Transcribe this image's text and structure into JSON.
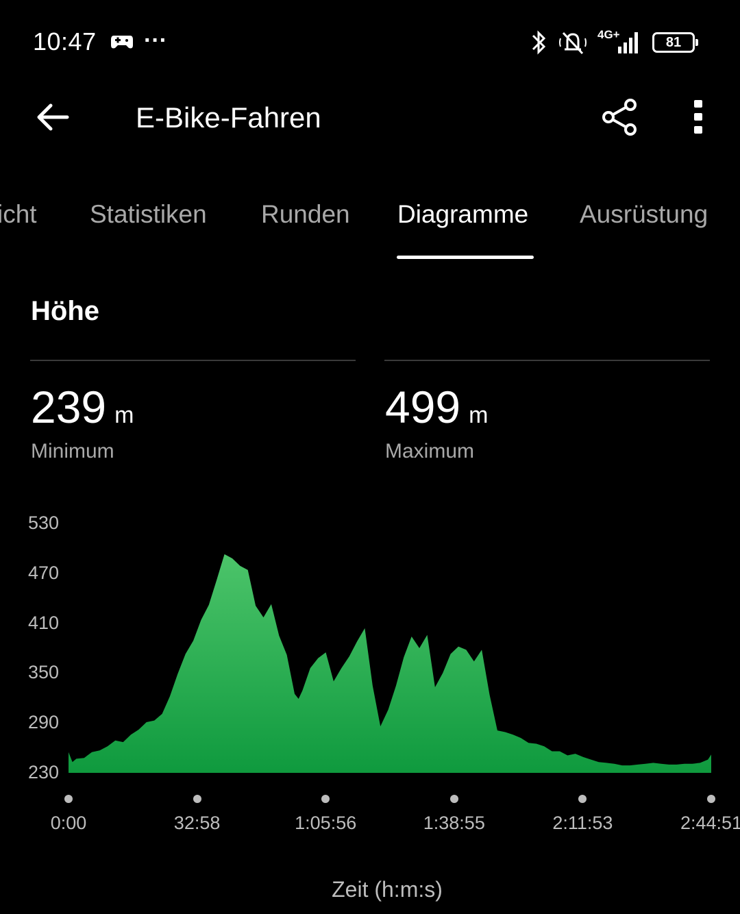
{
  "status_bar": {
    "time": "10:47",
    "more": "···",
    "network": "4G+",
    "battery": "81"
  },
  "app_bar": {
    "title": "E-Bike-Fahren",
    "back_icon": "arrow-left-icon",
    "share_icon": "share-icon",
    "menu_icon": "more-vertical-icon"
  },
  "tabs": [
    {
      "label": "icht"
    },
    {
      "label": "Statistiken"
    },
    {
      "label": "Runden"
    },
    {
      "label": "Diagramme",
      "active": true
    },
    {
      "label": "Ausrüstung"
    }
  ],
  "section": {
    "title": "Höhe",
    "min_value": "239",
    "min_unit": "m",
    "min_label": "Minimum",
    "max_value": "499",
    "max_unit": "m",
    "max_label": "Maximum"
  },
  "chart_data": {
    "type": "area",
    "title": "Höhe",
    "xlabel": "Zeit (h:m:s)",
    "ylabel": "",
    "ylim": [
      230,
      530
    ],
    "yticks": [
      "530",
      "470",
      "410",
      "350",
      "290",
      "230"
    ],
    "xticks": [
      "0:00",
      "32:58",
      "1:05:56",
      "1:38:55",
      "2:11:53",
      "2:44:51"
    ],
    "xlim_minutes": [
      0,
      164.85
    ],
    "fill_color_top": "#4cc46a",
    "fill_color_bottom": "#0f9a3e",
    "series": [
      {
        "x": [
          0,
          1,
          2,
          4,
          6,
          8,
          10,
          12,
          14,
          16,
          18,
          20,
          22,
          24,
          26,
          28,
          30,
          32,
          34,
          36,
          38,
          40,
          42,
          44,
          46,
          48,
          50,
          52,
          54,
          56,
          58,
          59,
          60,
          62,
          64,
          66,
          68,
          70,
          72,
          74,
          76,
          78,
          80,
          82,
          84,
          86,
          88,
          90,
          92,
          94,
          96,
          98,
          100,
          102,
          104,
          106,
          108,
          110,
          112,
          114,
          116,
          118,
          120,
          122,
          124,
          126,
          128,
          130,
          132,
          134,
          136,
          138,
          140,
          142,
          144,
          146,
          148,
          150,
          152,
          154,
          156,
          158,
          160,
          162,
          164,
          164.85
        ],
        "y": [
          255,
          243,
          247,
          248,
          255,
          257,
          262,
          269,
          267,
          276,
          282,
          291,
          293,
          301,
          322,
          349,
          373,
          389,
          414,
          432,
          462,
          493,
          488,
          479,
          474,
          431,
          417,
          433,
          395,
          372,
          325,
          319,
          329,
          356,
          368,
          375,
          340,
          356,
          370,
          388,
          404,
          335,
          286,
          306,
          335,
          369,
          394,
          380,
          396,
          333,
          350,
          373,
          382,
          378,
          364,
          378,
          324,
          281,
          279,
          276,
          272,
          266,
          265,
          262,
          256,
          256,
          251,
          253,
          249,
          246,
          243,
          242,
          241,
          239,
          239,
          240,
          241,
          242,
          241,
          240,
          240,
          241,
          241,
          242,
          246,
          252
        ]
      }
    ]
  }
}
